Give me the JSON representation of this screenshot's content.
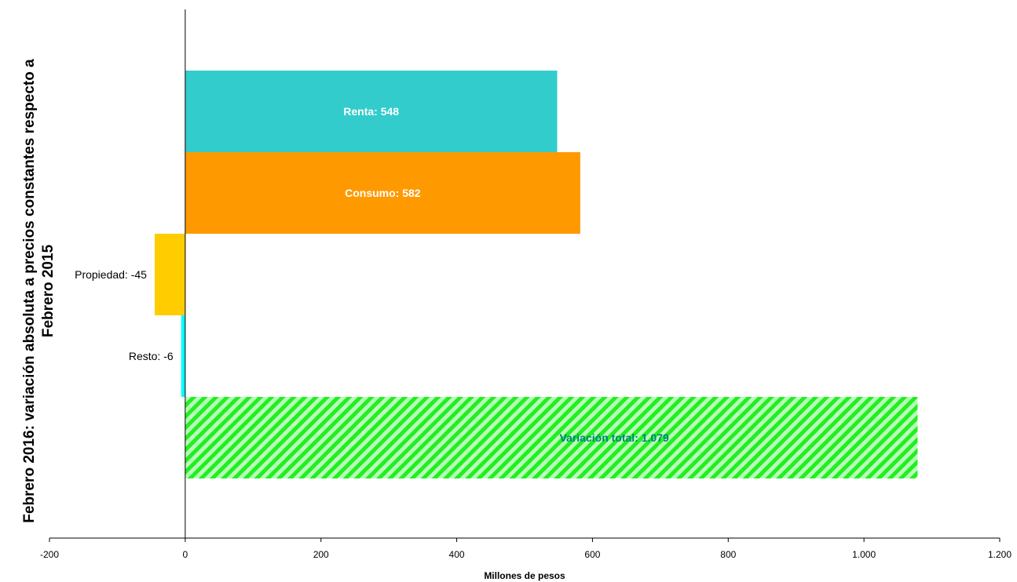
{
  "chart_data": {
    "type": "bar",
    "orientation": "horizontal",
    "title": "Febrero 2016: variación absoluta a precios constantes respecto a Febrero 2015",
    "xlabel": "Millones de pesos",
    "ylabel": "",
    "xlim": [
      -200,
      1200
    ],
    "xticks": [
      "-200",
      "0",
      "200",
      "400",
      "600",
      "800",
      "1.000",
      "1.200"
    ],
    "grid": false,
    "bars": [
      {
        "label": "Renta",
        "value": 548,
        "text": "Renta:  548",
        "color": "#33CCCC",
        "label_position": "inside",
        "label_color": "#ffffff",
        "label_bold": true,
        "pattern": false
      },
      {
        "label": "Consumo",
        "value": 582,
        "text": "Consumo:  582",
        "color": "#FF9900",
        "label_position": "inside",
        "label_color": "#ffffff",
        "label_bold": true,
        "pattern": false
      },
      {
        "label": "Propiedad",
        "value": -45,
        "text": "Propiedad: -45",
        "color": "#FFCC00",
        "label_position": "outside-left",
        "label_color": "#000000",
        "label_bold": false,
        "pattern": false
      },
      {
        "label": "Resto",
        "value": -6,
        "text": "Resto: -6",
        "color": "#00FFFF",
        "label_position": "outside-left",
        "label_color": "#000000",
        "label_bold": false,
        "pattern": false
      },
      {
        "label": "Variación total",
        "value": 1079,
        "text": "Variación total: 1.079",
        "color": "#33FF33",
        "label_position": "inside",
        "label_color": "#008080",
        "label_bold": true,
        "pattern": true
      }
    ]
  }
}
